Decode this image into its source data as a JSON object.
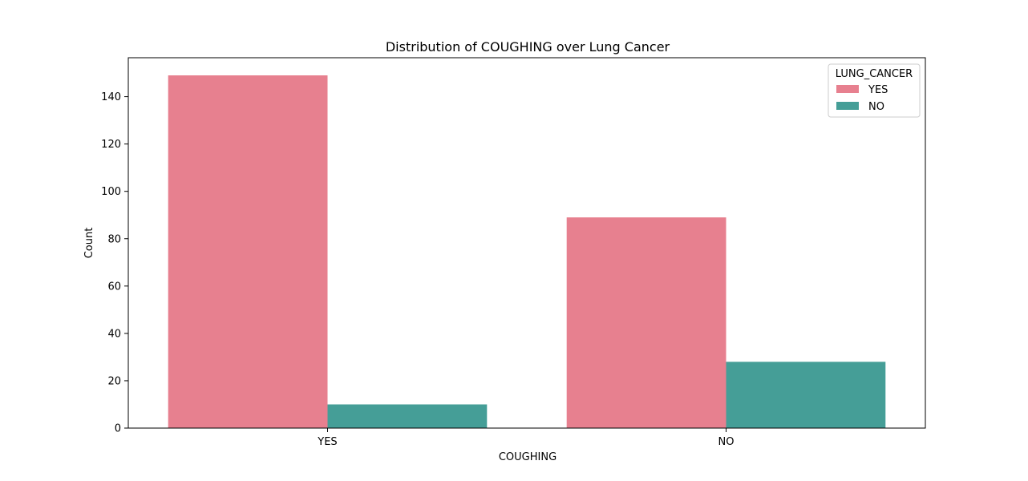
{
  "chart_data": {
    "type": "bar",
    "title": "Distribution of COUGHING over Lung Cancer",
    "xlabel": "COUGHING",
    "ylabel": "Count",
    "categories": [
      "YES",
      "NO"
    ],
    "series": [
      {
        "name": "YES",
        "color": "#e7808f",
        "values": [
          149,
          89
        ]
      },
      {
        "name": "NO",
        "color": "#459e97",
        "values": [
          10,
          28
        ]
      }
    ],
    "ylim": [
      0,
      156.45
    ],
    "yticks": [
      0,
      20,
      40,
      60,
      80,
      100,
      120,
      140
    ],
    "grid": false,
    "legend": {
      "title": "LUNG_CANCER",
      "placement": "top-right"
    }
  }
}
